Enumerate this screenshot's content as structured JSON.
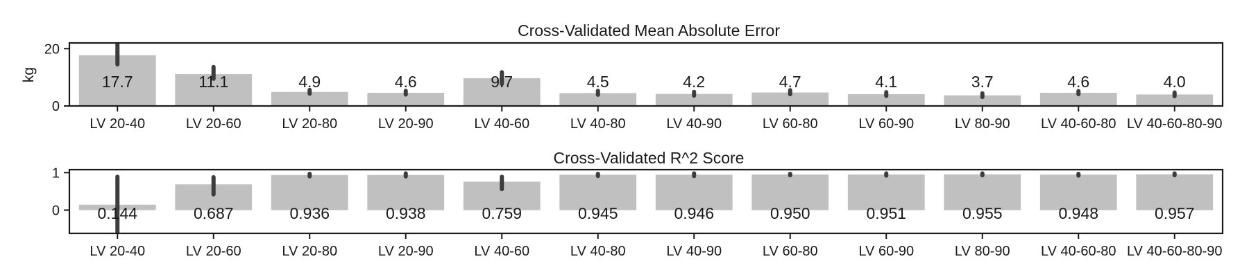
{
  "chart_data": [
    {
      "type": "bar",
      "title": "Cross-Validated Mean Absolute Error",
      "xlabel": "",
      "ylabel": "kg",
      "ylim": [
        0,
        22
      ],
      "yticks": [
        0,
        20
      ],
      "categories": [
        "LV 20-40",
        "LV 20-60",
        "LV 20-80",
        "LV 20-90",
        "LV 40-60",
        "LV 40-80",
        "LV 40-90",
        "LV 60-80",
        "LV 60-90",
        "LV 80-90",
        "LV 40-60-80",
        "LV 40-60-80-90"
      ],
      "values": [
        17.7,
        11.1,
        4.9,
        4.6,
        9.7,
        4.5,
        4.2,
        4.7,
        4.1,
        3.7,
        4.6,
        4.0
      ],
      "value_labels": [
        "17.7",
        "11.1",
        "4.9",
        "4.6",
        "9.7",
        "4.5",
        "4.2",
        "4.7",
        "4.1",
        "3.7",
        "4.6",
        "4.0"
      ],
      "error_low": [
        14.5,
        9.5,
        4.3,
        4.0,
        7.7,
        3.9,
        3.6,
        4.1,
        3.5,
        3.1,
        4.1,
        3.4
      ],
      "error_high": [
        21.5,
        13.6,
        5.6,
        5.3,
        11.8,
        5.3,
        4.9,
        5.5,
        4.8,
        4.4,
        5.2,
        4.7
      ],
      "bar_color": "#c0c0c0",
      "error_color": "#3d3d3d",
      "grid": false
    },
    {
      "type": "bar",
      "title": "Cross-Validated R^2 Score",
      "xlabel": "",
      "ylabel": "",
      "ylim": [
        -0.62,
        1.08
      ],
      "yticks": [
        0,
        1
      ],
      "categories": [
        "LV 20-40",
        "LV 20-60",
        "LV 20-80",
        "LV 20-90",
        "LV 40-60",
        "LV 40-80",
        "LV 40-90",
        "LV 60-80",
        "LV 60-90",
        "LV 80-90",
        "LV 40-60-80",
        "LV 40-60-80-90"
      ],
      "values": [
        0.144,
        0.687,
        0.936,
        0.938,
        0.759,
        0.945,
        0.946,
        0.95,
        0.951,
        0.955,
        0.948,
        0.957
      ],
      "value_labels": [
        "0.144",
        "0.687",
        "0.936",
        "0.938",
        "0.759",
        "0.945",
        "0.946",
        "0.950",
        "0.951",
        "0.955",
        "0.948",
        "0.957"
      ],
      "error_low": [
        -0.58,
        0.42,
        0.9,
        0.9,
        0.56,
        0.91,
        0.91,
        0.93,
        0.92,
        0.93,
        0.92,
        0.93
      ],
      "error_high": [
        0.89,
        0.88,
        0.97,
        0.98,
        0.89,
        0.97,
        0.98,
        0.97,
        0.98,
        0.98,
        0.97,
        0.98
      ],
      "bar_color": "#c0c0c0",
      "error_color": "#3d3d3d",
      "grid": false
    }
  ]
}
